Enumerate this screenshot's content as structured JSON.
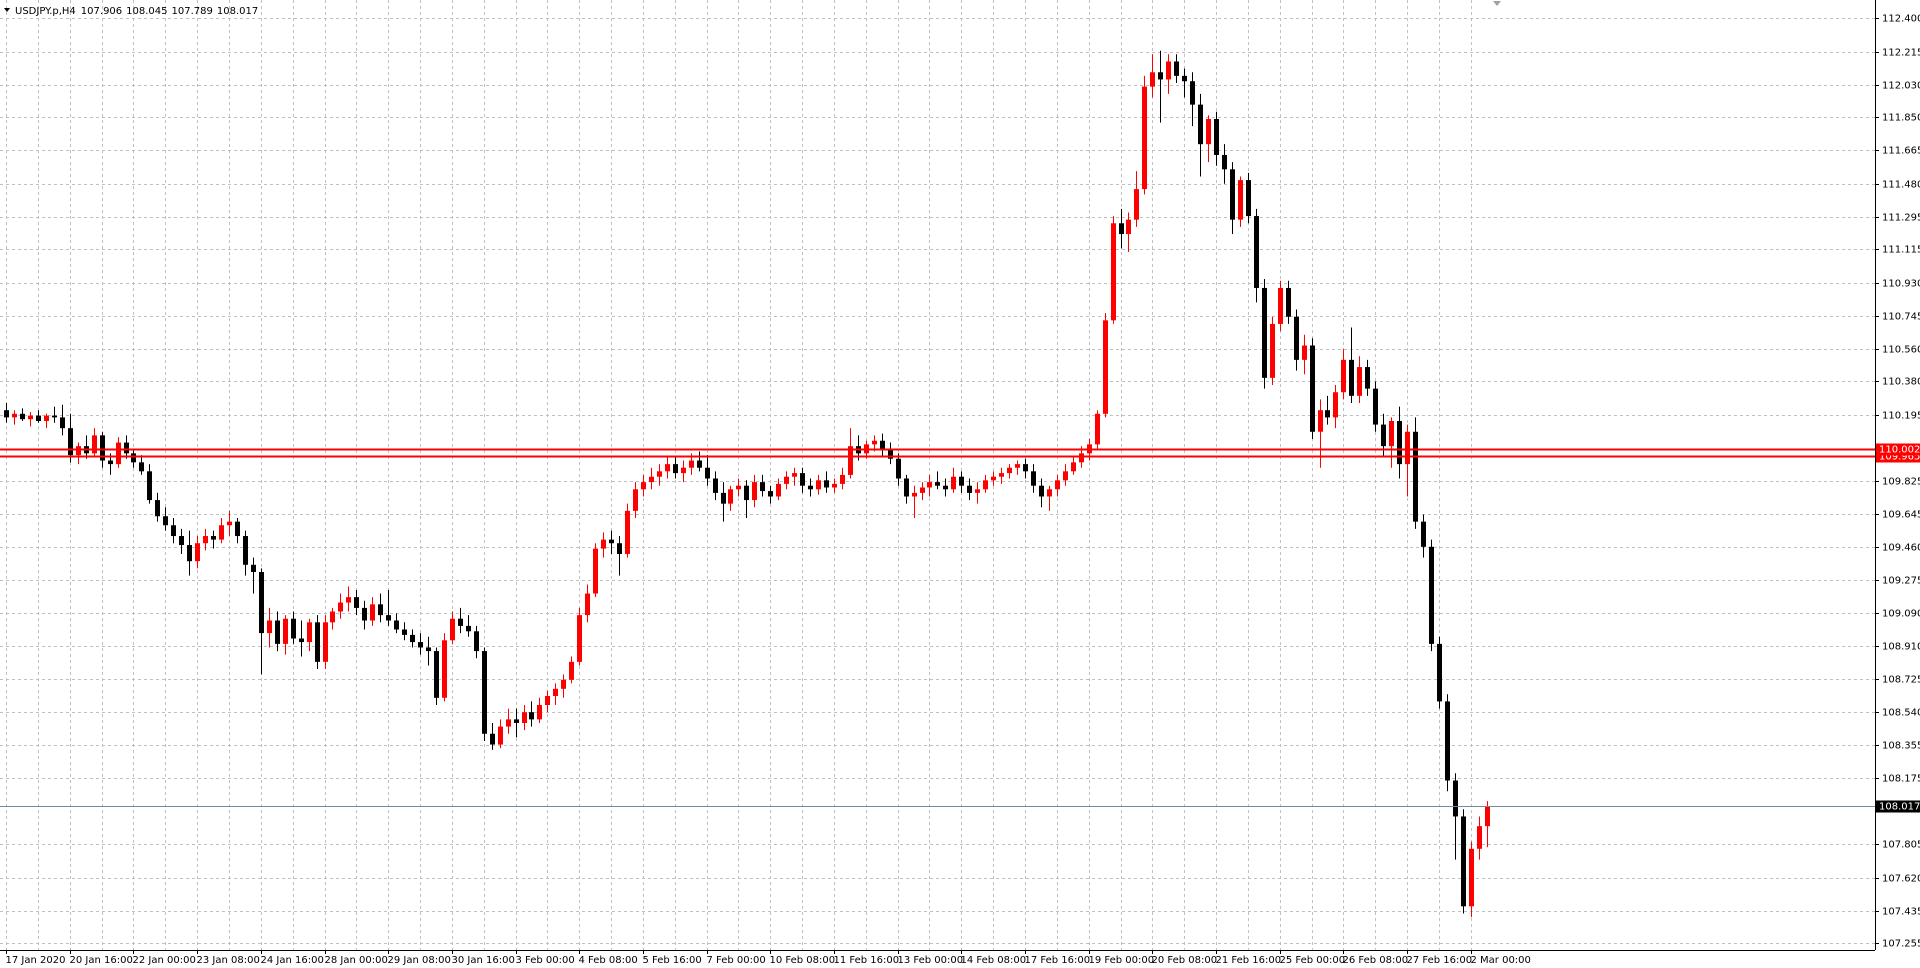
{
  "chart_data": {
    "type": "candlestick",
    "symbol": "USDJPY.p,H4",
    "up_color": "#ff0000",
    "down_color": "#000000",
    "grid": true,
    "ylim": [
      107.217,
      112.502
    ],
    "yticks": [
      {
        "value": 112.4,
        "label": "112.400"
      },
      {
        "value": 112.215,
        "label": "112.215"
      },
      {
        "value": 112.03,
        "label": "112.030"
      },
      {
        "value": 111.85,
        "label": "111.850"
      },
      {
        "value": 111.665,
        "label": "111.665"
      },
      {
        "value": 111.48,
        "label": "111.480"
      },
      {
        "value": 111.295,
        "label": "111.295"
      },
      {
        "value": 111.115,
        "label": "111.115"
      },
      {
        "value": 110.93,
        "label": "110.930"
      },
      {
        "value": 110.745,
        "label": "110.745"
      },
      {
        "value": 110.56,
        "label": "110.560"
      },
      {
        "value": 110.38,
        "label": "110.380"
      },
      {
        "value": 110.195,
        "label": "110.195"
      },
      {
        "value": 109.825,
        "label": "109.825"
      },
      {
        "value": 109.645,
        "label": "109.645"
      },
      {
        "value": 109.46,
        "label": "109.460"
      },
      {
        "value": 109.275,
        "label": "109.275"
      },
      {
        "value": 109.09,
        "label": "109.090"
      },
      {
        "value": 108.91,
        "label": "108.910"
      },
      {
        "value": 108.725,
        "label": "108.725"
      },
      {
        "value": 108.54,
        "label": "108.540"
      },
      {
        "value": 108.355,
        "label": "108.355"
      },
      {
        "value": 108.175,
        "label": "108.175"
      },
      {
        "value": 107.805,
        "label": "107.805"
      },
      {
        "value": 107.62,
        "label": "107.620"
      },
      {
        "value": 107.435,
        "label": "107.435"
      },
      {
        "value": 107.255,
        "label": "107.255"
      }
    ],
    "hlines": [
      {
        "value": 110.002,
        "color": "#ff0000"
      },
      {
        "value": 109.965,
        "color": "#ff0000"
      }
    ],
    "bid_color": "#778899",
    "categories": [
      "17 Jan 2020",
      null,
      null,
      null,
      null,
      null,
      null,
      null,
      "20 Jan 16:00",
      null,
      null,
      null,
      null,
      null,
      null,
      null,
      "22 Jan 00:00",
      null,
      null,
      null,
      null,
      null,
      null,
      null,
      "23 Jan 08:00",
      null,
      null,
      null,
      null,
      null,
      null,
      null,
      "24 Jan 16:00",
      null,
      null,
      null,
      null,
      null,
      null,
      null,
      "28 Jan 00:00",
      null,
      null,
      null,
      null,
      null,
      null,
      null,
      "29 Jan 08:00",
      null,
      null,
      null,
      null,
      null,
      null,
      null,
      "30 Jan 16:00",
      null,
      null,
      null,
      null,
      null,
      null,
      null,
      "3 Feb 00:00",
      null,
      null,
      null,
      null,
      null,
      null,
      null,
      "4 Feb 08:00",
      null,
      null,
      null,
      null,
      null,
      null,
      null,
      "5 Feb 16:00",
      null,
      null,
      null,
      null,
      null,
      null,
      null,
      "7 Feb 00:00",
      null,
      null,
      null,
      null,
      null,
      null,
      null,
      "10 Feb 08:00",
      null,
      null,
      null,
      null,
      null,
      null,
      null,
      "11 Feb 16:00",
      null,
      null,
      null,
      null,
      null,
      null,
      null,
      "13 Feb 00:00",
      null,
      null,
      null,
      null,
      null,
      null,
      null,
      "14 Feb 08:00",
      null,
      null,
      null,
      null,
      null,
      null,
      null,
      "17 Feb 16:00",
      null,
      null,
      null,
      null,
      null,
      null,
      null,
      "19 Feb 00:00",
      null,
      null,
      null,
      null,
      null,
      null,
      null,
      "20 Feb 08:00",
      null,
      null,
      null,
      null,
      null,
      null,
      null,
      "21 Feb 16:00",
      null,
      null,
      null,
      null,
      null,
      null,
      null,
      "25 Feb 00:00",
      null,
      null,
      null,
      null,
      null,
      null,
      null,
      "26 Feb 08:00",
      null,
      null,
      null,
      null,
      null,
      null,
      null,
      "27 Feb 16:00",
      null,
      null,
      null,
      null,
      null,
      null,
      null,
      "2 Mar 00:00",
      null,
      null
    ],
    "candles": [
      [
        110.22,
        110.26,
        110.15,
        110.18
      ],
      [
        110.18,
        110.22,
        110.14,
        110.2
      ],
      [
        110.2,
        110.23,
        110.16,
        110.17
      ],
      [
        110.17,
        110.21,
        110.13,
        110.19
      ],
      [
        110.19,
        110.22,
        110.15,
        110.16
      ],
      [
        110.16,
        110.2,
        110.12,
        110.19
      ],
      [
        110.19,
        110.24,
        110.15,
        110.18
      ],
      [
        110.18,
        110.25,
        110.08,
        110.12
      ],
      [
        110.12,
        110.2,
        109.93,
        109.97
      ],
      [
        109.97,
        110.04,
        109.92,
        110.02
      ],
      [
        110.02,
        110.08,
        109.95,
        109.98
      ],
      [
        109.98,
        110.12,
        109.96,
        110.08
      ],
      [
        110.08,
        110.1,
        109.9,
        109.94
      ],
      [
        109.94,
        109.98,
        109.86,
        109.92
      ],
      [
        109.92,
        110.07,
        109.9,
        110.04
      ],
      [
        110.04,
        110.08,
        109.95,
        109.98
      ],
      [
        109.98,
        110.0,
        109.9,
        109.93
      ],
      [
        109.93,
        109.97,
        109.86,
        109.88
      ],
      [
        109.88,
        109.92,
        109.7,
        109.72
      ],
      [
        109.72,
        109.76,
        109.6,
        109.63
      ],
      [
        109.63,
        109.68,
        109.55,
        109.58
      ],
      [
        109.58,
        109.62,
        109.48,
        109.52
      ],
      [
        109.52,
        109.56,
        109.42,
        109.47
      ],
      [
        109.47,
        109.55,
        109.3,
        109.38
      ],
      [
        109.38,
        109.52,
        109.34,
        109.48
      ],
      [
        109.48,
        109.56,
        109.44,
        109.52
      ],
      [
        109.52,
        109.55,
        109.45,
        109.5
      ],
      [
        109.5,
        109.62,
        109.48,
        109.58
      ],
      [
        109.58,
        109.66,
        109.52,
        109.6
      ],
      [
        109.6,
        109.62,
        109.48,
        109.52
      ],
      [
        109.52,
        109.55,
        109.3,
        109.36
      ],
      [
        109.36,
        109.4,
        109.2,
        109.32
      ],
      [
        109.32,
        109.34,
        108.75,
        108.98
      ],
      [
        108.98,
        109.12,
        108.9,
        109.05
      ],
      [
        109.05,
        109.1,
        108.88,
        108.92
      ],
      [
        108.92,
        109.08,
        108.86,
        109.06
      ],
      [
        109.06,
        109.1,
        108.92,
        108.95
      ],
      [
        108.95,
        109.05,
        108.85,
        108.93
      ],
      [
        108.93,
        109.06,
        108.88,
        109.04
      ],
      [
        109.04,
        109.08,
        108.78,
        108.82
      ],
      [
        108.82,
        109.08,
        108.78,
        109.04
      ],
      [
        109.04,
        109.12,
        109.0,
        109.1
      ],
      [
        109.1,
        109.2,
        109.06,
        109.15
      ],
      [
        109.15,
        109.24,
        109.1,
        109.18
      ],
      [
        109.18,
        109.22,
        109.08,
        109.12
      ],
      [
        109.12,
        109.16,
        109.0,
        109.05
      ],
      [
        109.05,
        109.18,
        109.02,
        109.14
      ],
      [
        109.14,
        109.2,
        109.04,
        109.08
      ],
      [
        109.08,
        109.22,
        109.02,
        109.05
      ],
      [
        109.05,
        109.09,
        108.98,
        109.0
      ],
      [
        109.0,
        109.04,
        108.94,
        108.97
      ],
      [
        108.97,
        109.0,
        108.9,
        108.93
      ],
      [
        108.93,
        108.98,
        108.86,
        108.9
      ],
      [
        108.9,
        108.96,
        108.8,
        108.88
      ],
      [
        108.88,
        108.9,
        108.58,
        108.62
      ],
      [
        108.62,
        108.98,
        108.6,
        108.94
      ],
      [
        108.94,
        109.1,
        108.92,
        109.06
      ],
      [
        109.06,
        109.12,
        108.98,
        109.02
      ],
      [
        109.02,
        109.08,
        108.96,
        108.99
      ],
      [
        108.99,
        109.02,
        108.84,
        108.88
      ],
      [
        108.88,
        108.9,
        108.38,
        108.42
      ],
      [
        108.42,
        108.48,
        108.33,
        108.36
      ],
      [
        108.36,
        108.5,
        108.34,
        108.46
      ],
      [
        108.46,
        108.56,
        108.42,
        108.5
      ],
      [
        108.5,
        108.56,
        108.4,
        108.48
      ],
      [
        108.48,
        108.58,
        108.44,
        108.54
      ],
      [
        108.54,
        108.6,
        108.46,
        108.5
      ],
      [
        108.5,
        108.62,
        108.48,
        108.58
      ],
      [
        108.58,
        108.66,
        108.54,
        108.63
      ],
      [
        108.63,
        108.7,
        108.58,
        108.67
      ],
      [
        108.67,
        108.75,
        108.62,
        108.72
      ],
      [
        108.72,
        108.85,
        108.7,
        108.82
      ],
      [
        108.82,
        109.12,
        108.8,
        109.08
      ],
      [
        109.08,
        109.25,
        109.04,
        109.2
      ],
      [
        109.2,
        109.48,
        109.18,
        109.45
      ],
      [
        109.45,
        109.54,
        109.4,
        109.5
      ],
      [
        109.5,
        109.55,
        109.42,
        109.48
      ],
      [
        109.48,
        109.52,
        109.3,
        109.42
      ],
      [
        109.42,
        109.7,
        109.4,
        109.66
      ],
      [
        109.66,
        109.82,
        109.62,
        109.78
      ],
      [
        109.78,
        109.86,
        109.74,
        109.82
      ],
      [
        109.82,
        109.9,
        109.78,
        109.85
      ],
      [
        109.85,
        109.92,
        109.8,
        109.88
      ],
      [
        109.88,
        109.96,
        109.84,
        109.92
      ],
      [
        109.92,
        109.96,
        109.84,
        109.87
      ],
      [
        109.87,
        109.94,
        109.82,
        109.9
      ],
      [
        109.9,
        109.98,
        109.86,
        109.94
      ],
      [
        109.94,
        109.99,
        109.88,
        109.9
      ],
      [
        109.9,
        109.97,
        109.8,
        109.84
      ],
      [
        109.84,
        109.88,
        109.72,
        109.76
      ],
      [
        109.76,
        109.82,
        109.6,
        109.7
      ],
      [
        109.7,
        109.8,
        109.66,
        109.78
      ],
      [
        109.78,
        109.84,
        109.74,
        109.8
      ],
      [
        109.8,
        109.83,
        109.62,
        109.72
      ],
      [
        109.72,
        109.86,
        109.68,
        109.82
      ],
      [
        109.82,
        109.86,
        109.74,
        109.77
      ],
      [
        109.77,
        109.8,
        109.7,
        109.74
      ],
      [
        109.74,
        109.84,
        109.72,
        109.81
      ],
      [
        109.81,
        109.88,
        109.78,
        109.85
      ],
      [
        109.85,
        109.9,
        109.8,
        109.87
      ],
      [
        109.87,
        109.9,
        109.76,
        109.8
      ],
      [
        109.8,
        109.84,
        109.74,
        109.78
      ],
      [
        109.78,
        109.86,
        109.75,
        109.83
      ],
      [
        109.83,
        109.88,
        109.76,
        109.79
      ],
      [
        109.79,
        109.84,
        109.76,
        109.81
      ],
      [
        109.81,
        109.9,
        109.78,
        109.86
      ],
      [
        109.86,
        110.12,
        109.84,
        110.02
      ],
      [
        110.02,
        110.08,
        109.94,
        109.98
      ],
      [
        109.98,
        110.05,
        109.95,
        110.03
      ],
      [
        110.03,
        110.08,
        109.99,
        110.05
      ],
      [
        110.05,
        110.09,
        109.96,
        110.0
      ],
      [
        110.0,
        110.04,
        109.92,
        109.95
      ],
      [
        109.95,
        109.98,
        109.8,
        109.84
      ],
      [
        109.84,
        109.86,
        109.7,
        109.74
      ],
      [
        109.74,
        109.8,
        109.62,
        109.76
      ],
      [
        109.76,
        109.82,
        109.72,
        109.79
      ],
      [
        109.79,
        109.86,
        109.74,
        109.82
      ],
      [
        109.82,
        109.88,
        109.78,
        109.8
      ],
      [
        109.8,
        109.84,
        109.74,
        109.78
      ],
      [
        109.78,
        109.9,
        109.76,
        109.85
      ],
      [
        109.85,
        109.88,
        109.76,
        109.8
      ],
      [
        109.8,
        109.84,
        109.72,
        109.76
      ],
      [
        109.76,
        109.82,
        109.7,
        109.78
      ],
      [
        109.78,
        109.86,
        109.76,
        109.83
      ],
      [
        109.83,
        109.88,
        109.8,
        109.85
      ],
      [
        109.85,
        109.9,
        109.81,
        109.87
      ],
      [
        109.87,
        109.92,
        109.84,
        109.9
      ],
      [
        109.9,
        109.94,
        109.86,
        109.92
      ],
      [
        109.92,
        109.95,
        109.84,
        109.88
      ],
      [
        109.88,
        109.92,
        109.76,
        109.8
      ],
      [
        109.8,
        109.84,
        109.68,
        109.74
      ],
      [
        109.74,
        109.8,
        109.66,
        109.78
      ],
      [
        109.78,
        109.86,
        109.74,
        109.83
      ],
      [
        109.83,
        109.92,
        109.8,
        109.88
      ],
      [
        109.88,
        109.96,
        109.86,
        109.93
      ],
      [
        109.93,
        110.02,
        109.9,
        109.98
      ],
      [
        109.98,
        110.06,
        109.94,
        110.03
      ],
      [
        110.03,
        110.22,
        110.0,
        110.2
      ],
      [
        110.2,
        110.76,
        110.18,
        110.72
      ],
      [
        110.72,
        111.3,
        110.7,
        111.26
      ],
      [
        111.26,
        111.34,
        111.12,
        111.2
      ],
      [
        111.2,
        111.32,
        111.1,
        111.28
      ],
      [
        111.28,
        111.55,
        111.24,
        111.45
      ],
      [
        111.45,
        112.08,
        111.42,
        112.02
      ],
      [
        112.02,
        112.2,
        111.96,
        112.1
      ],
      [
        112.1,
        112.22,
        111.82,
        112.06
      ],
      [
        112.06,
        112.2,
        111.98,
        112.16
      ],
      [
        112.16,
        112.2,
        112.04,
        112.08
      ],
      [
        112.08,
        112.12,
        111.96,
        112.05
      ],
      [
        112.05,
        112.1,
        111.8,
        111.92
      ],
      [
        111.92,
        111.98,
        111.52,
        111.7
      ],
      [
        111.7,
        111.86,
        111.6,
        111.84
      ],
      [
        111.84,
        111.88,
        111.58,
        111.64
      ],
      [
        111.64,
        111.7,
        111.48,
        111.56
      ],
      [
        111.56,
        111.6,
        111.2,
        111.28
      ],
      [
        111.28,
        111.52,
        111.24,
        111.5
      ],
      [
        111.5,
        111.54,
        111.26,
        111.3
      ],
      [
        111.3,
        111.34,
        110.82,
        110.9
      ],
      [
        110.9,
        110.95,
        110.34,
        110.4
      ],
      [
        110.4,
        110.74,
        110.36,
        110.7
      ],
      [
        110.7,
        110.94,
        110.66,
        110.9
      ],
      [
        110.9,
        110.94,
        110.7,
        110.74
      ],
      [
        110.74,
        110.78,
        110.44,
        110.5
      ],
      [
        110.5,
        110.64,
        110.42,
        110.58
      ],
      [
        110.58,
        110.62,
        110.06,
        110.1
      ],
      [
        110.1,
        110.28,
        109.9,
        110.22
      ],
      [
        110.22,
        110.3,
        110.14,
        110.18
      ],
      [
        110.18,
        110.36,
        110.12,
        110.32
      ],
      [
        110.32,
        110.56,
        110.28,
        110.5
      ],
      [
        110.5,
        110.68,
        110.26,
        110.3
      ],
      [
        110.3,
        110.52,
        110.26,
        110.46
      ],
      [
        110.46,
        110.5,
        110.3,
        110.34
      ],
      [
        110.34,
        110.38,
        110.1,
        110.14
      ],
      [
        110.14,
        110.2,
        109.96,
        110.02
      ],
      [
        110.02,
        110.18,
        109.9,
        110.16
      ],
      [
        110.16,
        110.24,
        109.84,
        109.92
      ],
      [
        109.92,
        110.14,
        109.74,
        110.1
      ],
      [
        110.1,
        110.18,
        109.56,
        109.6
      ],
      [
        109.6,
        109.64,
        109.4,
        109.46
      ],
      [
        109.46,
        109.5,
        108.88,
        108.92
      ],
      [
        108.92,
        108.96,
        108.56,
        108.6
      ],
      [
        108.6,
        108.64,
        108.1,
        108.16
      ],
      [
        108.16,
        108.2,
        107.72,
        107.96
      ],
      [
        107.96,
        108.0,
        107.42,
        107.46
      ],
      [
        107.46,
        107.82,
        107.4,
        107.78
      ],
      [
        107.78,
        107.96,
        107.72,
        107.906
      ],
      [
        107.906,
        108.045,
        107.789,
        108.017
      ]
    ]
  }
}
